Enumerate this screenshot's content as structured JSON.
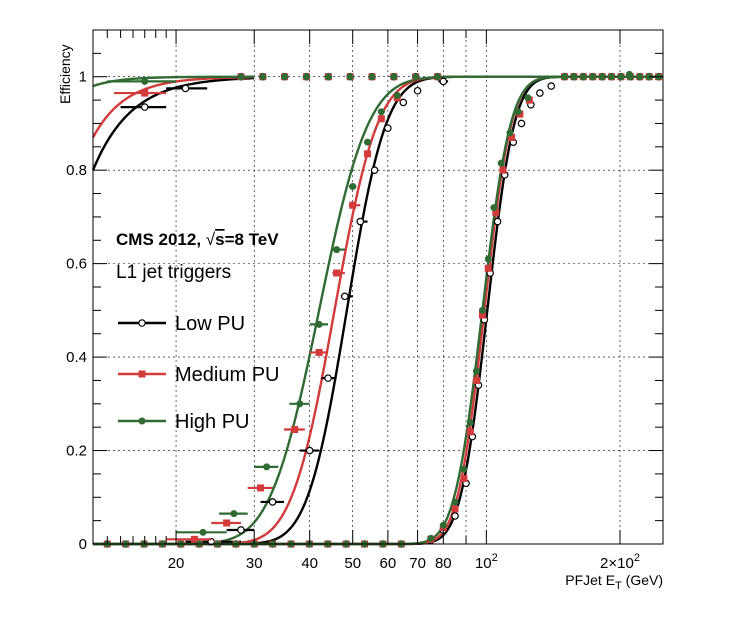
{
  "chart_data": {
    "type": "scatter",
    "title": "",
    "xlabel": "PFJet E",
    "xlabel_sub": "T",
    "xlabel_unit": " (GeV)",
    "ylabel": "Efficiency",
    "x_scale": "log",
    "xlim": [
      13,
      250
    ],
    "ylim": [
      0,
      1.1
    ],
    "grid": true,
    "annotations": {
      "experiment": "CMS 2012, ",
      "sqrt_s_label": "s",
      "sqrt_s_value": "=8 TeV",
      "subtitle": "L1 jet triggers"
    },
    "x_tick_labels": [
      {
        "value": 20,
        "label": "20"
      },
      {
        "value": 30,
        "label": "30"
      },
      {
        "value": 40,
        "label": "40"
      },
      {
        "value": 50,
        "label": "50"
      },
      {
        "value": 60,
        "label": "60"
      },
      {
        "value": 70,
        "label": "70"
      },
      {
        "value": 80,
        "label": "80"
      },
      {
        "value": 100,
        "label": "10",
        "sup": "2"
      },
      {
        "value": 200,
        "label": "2×10",
        "sup": "2"
      }
    ],
    "y_tick_labels": [
      {
        "value": 0,
        "label": "0"
      },
      {
        "value": 0.2,
        "label": "0.2"
      },
      {
        "value": 0.4,
        "label": "0.4"
      },
      {
        "value": 0.6,
        "label": "0.6"
      },
      {
        "value": 0.8,
        "label": "0.8"
      },
      {
        "value": 1,
        "label": "1"
      }
    ],
    "legend_position": "left-middle",
    "series": [
      {
        "name": "Low PU",
        "color": "#000000",
        "marker": "open-circle",
        "turnons": [
          {
            "points": [
              {
                "x": 17,
                "y": 0.935,
                "xlo": 15,
                "xhi": 19
              },
              {
                "x": 21,
                "y": 0.975,
                "xlo": 19,
                "xhi": 23.5
              },
              {
                "x": 24,
                "y": 0.005,
                "xlo": 21,
                "xhi": 28
              },
              {
                "x": 28,
                "y": 0.03,
                "xlo": 26,
                "xhi": 30
              },
              {
                "x": 33,
                "y": 0.09,
                "xlo": 31,
                "xhi": 35
              },
              {
                "x": 40,
                "y": 0.2,
                "xlo": 38,
                "xhi": 42
              },
              {
                "x": 44,
                "y": 0.355,
                "xlo": 42.5,
                "xhi": 46
              },
              {
                "x": 48,
                "y": 0.53,
                "xlo": 47,
                "xhi": 50
              },
              {
                "x": 52,
                "y": 0.69,
                "xlo": 51,
                "xhi": 54
              },
              {
                "x": 56,
                "y": 0.8,
                "xlo": 55,
                "xhi": 57
              },
              {
                "x": 60,
                "y": 0.89,
                "xlo": 59,
                "xhi": 61
              },
              {
                "x": 65,
                "y": 0.945,
                "xlo": 64,
                "xhi": 66
              },
              {
                "x": 70,
                "y": 0.97,
                "xlo": 69,
                "xhi": 71
              },
              {
                "x": 80,
                "y": 0.99,
                "xlo": 78,
                "xhi": 82
              }
            ],
            "curve": {
              "mu": 48.5,
              "sigma": 0.16,
              "floor": 0.0
            }
          },
          {
            "points": [
              {
                "x": 75,
                "y": 0.008
              },
              {
                "x": 80,
                "y": 0.03
              },
              {
                "x": 85,
                "y": 0.06
              },
              {
                "x": 90,
                "y": 0.13
              },
              {
                "x": 93,
                "y": 0.23
              },
              {
                "x": 96,
                "y": 0.34
              },
              {
                "x": 99,
                "y": 0.48
              },
              {
                "x": 102,
                "y": 0.58
              },
              {
                "x": 106,
                "y": 0.69
              },
              {
                "x": 110,
                "y": 0.79
              },
              {
                "x": 115,
                "y": 0.86
              },
              {
                "x": 120,
                "y": 0.9
              },
              {
                "x": 126,
                "y": 0.94
              },
              {
                "x": 132,
                "y": 0.965
              },
              {
                "x": 140,
                "y": 0.98
              }
            ],
            "curve": {
              "mu": 100.5,
              "sigma": 0.11,
              "floor": 0.0
            }
          }
        ],
        "low_curve": {
          "mu": 12.5,
          "sigma": 0.2,
          "start_y": 0.8
        }
      },
      {
        "name": "Medium PU",
        "color": "#d33a3a",
        "marker": "filled-square",
        "turnons": [
          {
            "points": [
              {
                "x": 17,
                "y": 0.965,
                "xlo": 14.5,
                "xhi": 19
              },
              {
                "x": 22,
                "y": 0.01,
                "xlo": 19,
                "xhi": 24
              },
              {
                "x": 26,
                "y": 0.045,
                "xlo": 24,
                "xhi": 28
              },
              {
                "x": 31,
                "y": 0.12,
                "xlo": 29,
                "xhi": 33
              },
              {
                "x": 37,
                "y": 0.245,
                "xlo": 35,
                "xhi": 39
              },
              {
                "x": 42,
                "y": 0.41,
                "xlo": 40,
                "xhi": 44
              },
              {
                "x": 46,
                "y": 0.58,
                "xlo": 45,
                "xhi": 48
              },
              {
                "x": 50,
                "y": 0.725,
                "xlo": 49,
                "xhi": 52
              },
              {
                "x": 54,
                "y": 0.835,
                "xlo": 53,
                "xhi": 55
              },
              {
                "x": 58,
                "y": 0.91,
                "xlo": 57,
                "xhi": 59
              },
              {
                "x": 63,
                "y": 0.955,
                "xlo": 62,
                "xhi": 64
              }
            ],
            "curve": {
              "mu": 45.5,
              "sigma": 0.175,
              "floor": 0.0
            }
          },
          {
            "points": [
              {
                "x": 75,
                "y": 0.01
              },
              {
                "x": 80,
                "y": 0.035
              },
              {
                "x": 85,
                "y": 0.075
              },
              {
                "x": 89,
                "y": 0.14
              },
              {
                "x": 92,
                "y": 0.24
              },
              {
                "x": 95,
                "y": 0.35
              },
              {
                "x": 98,
                "y": 0.49
              },
              {
                "x": 101,
                "y": 0.59
              },
              {
                "x": 105,
                "y": 0.71
              },
              {
                "x": 109,
                "y": 0.8
              },
              {
                "x": 114,
                "y": 0.87
              },
              {
                "x": 119,
                "y": 0.92
              },
              {
                "x": 125,
                "y": 0.95
              }
            ],
            "curve": {
              "mu": 99.0,
              "sigma": 0.11,
              "floor": 0.0
            }
          }
        ],
        "low_curve": {
          "mu": 12.0,
          "sigma": 0.17,
          "start_y": 0.87
        }
      },
      {
        "name": "High PU",
        "color": "#2f6b32",
        "marker": "filled-circle",
        "turnons": [
          {
            "points": [
              {
                "x": 17,
                "y": 0.99,
                "xlo": 14,
                "xhi": 20
              },
              {
                "x": 23,
                "y": 0.025,
                "xlo": 20,
                "xhi": 26
              },
              {
                "x": 27,
                "y": 0.065,
                "xlo": 25,
                "xhi": 29
              },
              {
                "x": 32,
                "y": 0.165,
                "xlo": 30,
                "xhi": 34
              },
              {
                "x": 38,
                "y": 0.3,
                "xlo": 36,
                "xhi": 40
              },
              {
                "x": 42,
                "y": 0.47,
                "xlo": 40,
                "xhi": 44
              },
              {
                "x": 46,
                "y": 0.63,
                "xlo": 45,
                "xhi": 48
              },
              {
                "x": 50,
                "y": 0.765,
                "xlo": 49,
                "xhi": 51
              },
              {
                "x": 54,
                "y": 0.86,
                "xlo": 53,
                "xhi": 55
              },
              {
                "x": 58,
                "y": 0.925,
                "xlo": 57,
                "xhi": 59
              },
              {
                "x": 63,
                "y": 0.96,
                "xlo": 62,
                "xhi": 64
              }
            ],
            "curve": {
              "mu": 42.0,
              "sigma": 0.2,
              "floor": 0.0
            }
          },
          {
            "points": [
              {
                "x": 75,
                "y": 0.012
              },
              {
                "x": 80,
                "y": 0.04
              },
              {
                "x": 85,
                "y": 0.09
              },
              {
                "x": 89,
                "y": 0.16
              },
              {
                "x": 92,
                "y": 0.26
              },
              {
                "x": 95,
                "y": 0.37
              },
              {
                "x": 98,
                "y": 0.5
              },
              {
                "x": 101,
                "y": 0.61
              },
              {
                "x": 104,
                "y": 0.72
              },
              {
                "x": 108,
                "y": 0.815
              },
              {
                "x": 113,
                "y": 0.88
              },
              {
                "x": 118,
                "y": 0.925
              },
              {
                "x": 124,
                "y": 0.955
              },
              {
                "x": 210,
                "y": 1.005
              }
            ],
            "curve": {
              "mu": 98.0,
              "sigma": 0.115,
              "floor": 0.0
            }
          }
        ],
        "low_curve": {
          "mu": 11.0,
          "sigma": 0.14,
          "start_y": 0.98
        }
      }
    ]
  }
}
